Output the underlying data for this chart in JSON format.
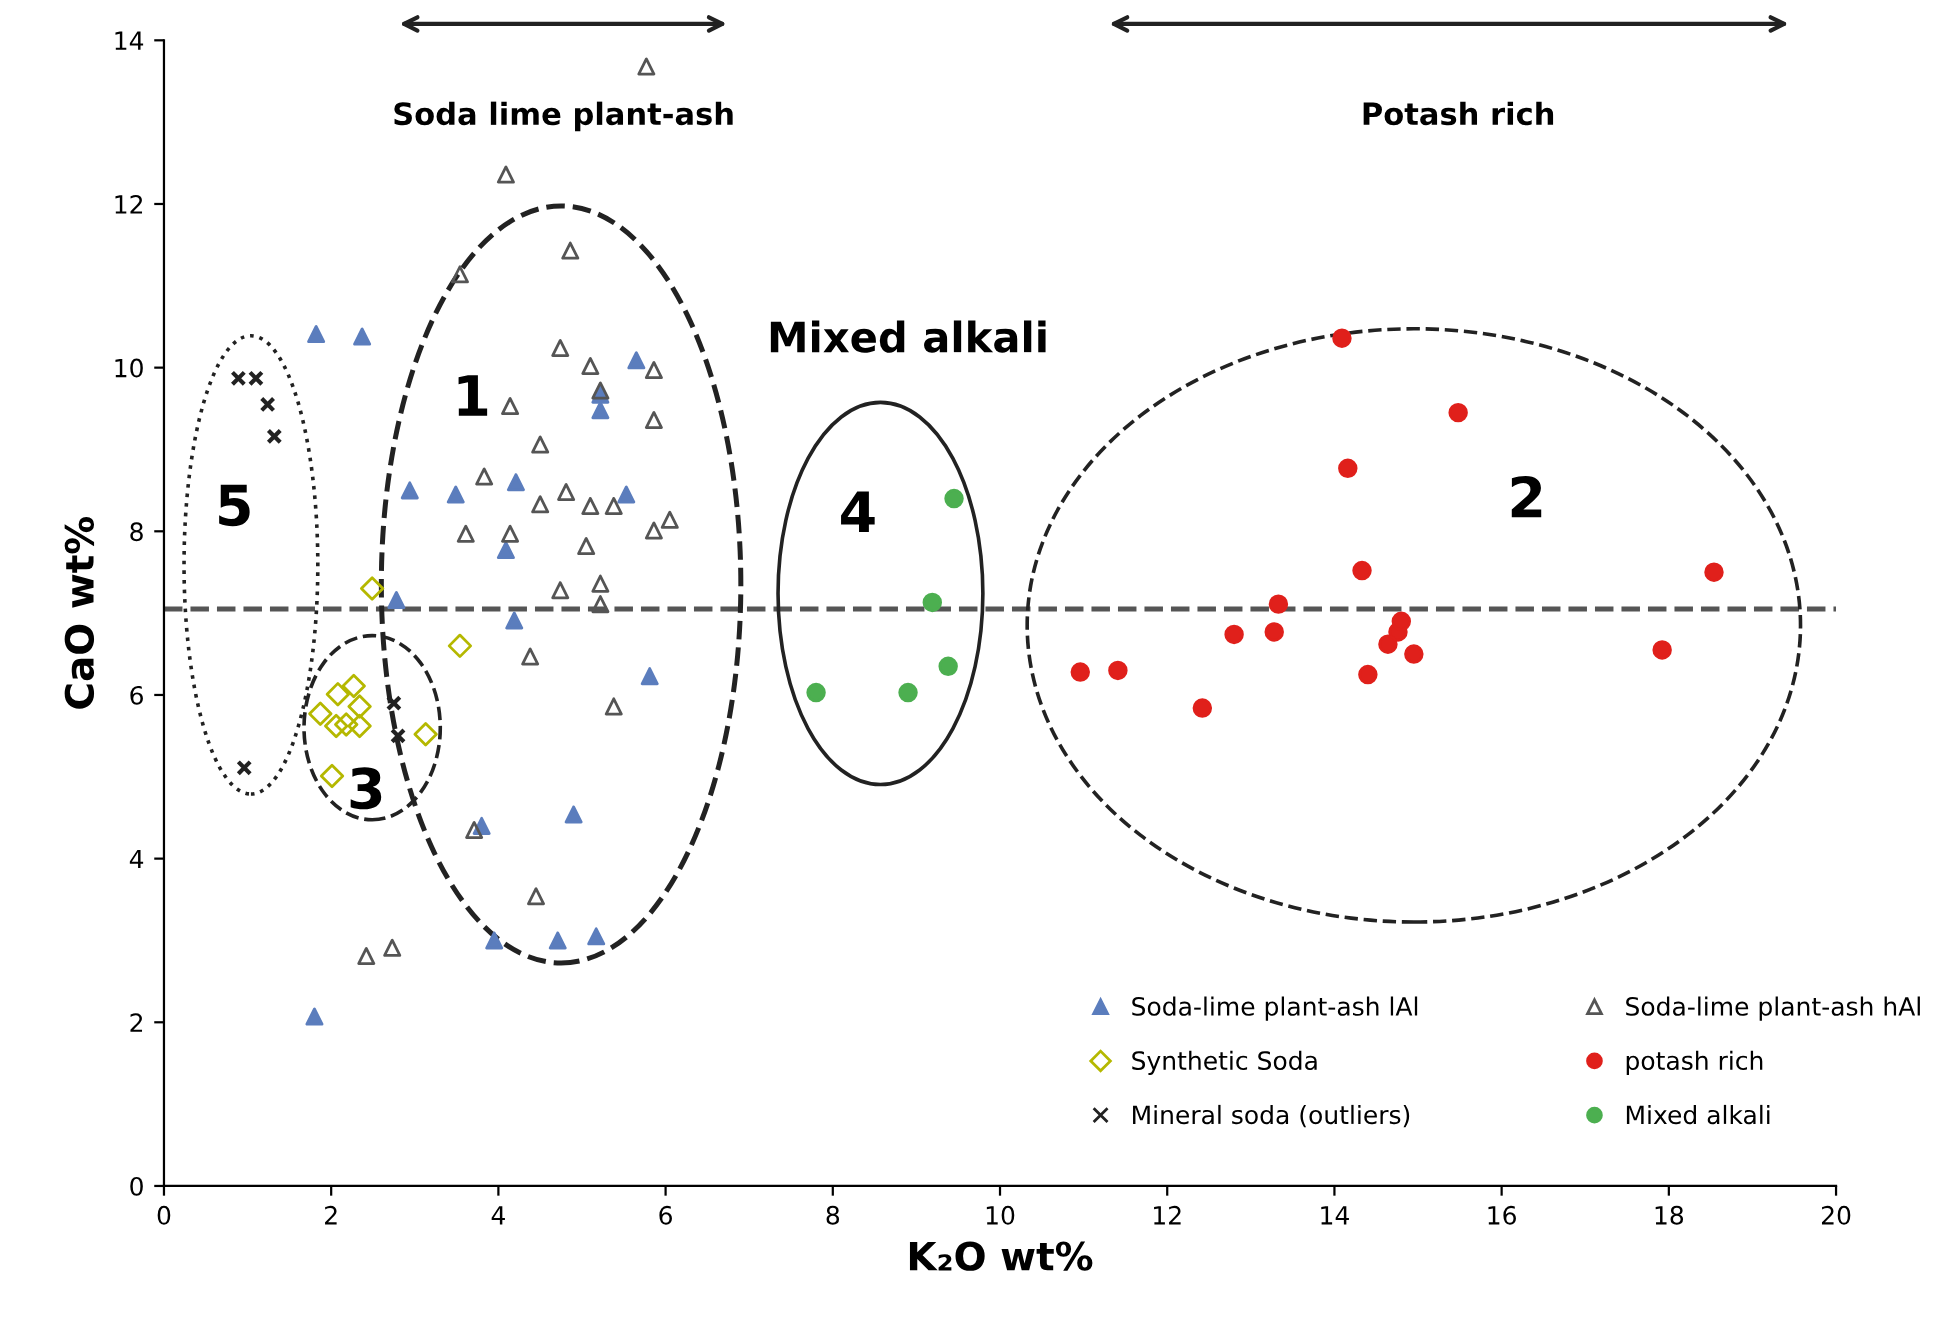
{
  "chart_data": {
    "type": "scatter",
    "xlabel": "K₂O wt%",
    "ylabel": "CaO wt%",
    "xlim": [
      0,
      20
    ],
    "xticks": [
      0,
      2,
      4,
      6,
      8,
      10,
      12,
      14,
      16,
      18,
      20
    ],
    "ylim": [
      0,
      14
    ],
    "yticks": [
      0,
      2,
      4,
      6,
      8,
      10,
      12,
      14
    ],
    "grid": false,
    "legend": "bottom right",
    "ref_lines": [
      {
        "axis": "y",
        "value": 7.05,
        "label": null,
        "color": "#555555",
        "line_style": "dashed"
      }
    ],
    "annotations": [
      "Soda lime plant-ash",
      "Potash rich",
      "Mixed alkali",
      "1",
      "2",
      "3",
      "4",
      "5"
    ],
    "series": [
      {
        "name": "Soda-lime plant-ash lAl",
        "color": "#5b7dbd",
        "marker": "triangle",
        "x": [
          1.82,
          2.37,
          2.94,
          3.49,
          4.21,
          4.09,
          4.19,
          2.78,
          5.81,
          4.9,
          3.8,
          3.95,
          4.71,
          5.17,
          5.53,
          5.22,
          5.22,
          5.65,
          1.8
        ],
        "values": [
          10.41,
          10.38,
          8.5,
          8.45,
          8.6,
          7.77,
          6.91,
          7.16,
          6.23,
          4.54,
          4.4,
          3.0,
          3.0,
          3.05,
          8.45,
          9.67,
          9.48,
          10.09,
          2.07
        ]
      },
      {
        "name": "Soda-lime plant-ash hAl",
        "color": "#555555",
        "marker": "triangle",
        "x": [
          5.77,
          4.09,
          4.86,
          3.54,
          4.74,
          5.1,
          5.86,
          4.14,
          5.86,
          5.22,
          4.5,
          3.83,
          4.5,
          4.81,
          5.1,
          5.38,
          3.61,
          4.14,
          5.05,
          5.86,
          6.05,
          4.74,
          5.22,
          5.22,
          4.38,
          5.38,
          4.45,
          3.71,
          2.42,
          2.73
        ],
        "values": [
          13.68,
          12.36,
          11.43,
          11.14,
          10.24,
          10.02,
          9.97,
          9.53,
          9.36,
          9.72,
          9.06,
          8.67,
          8.33,
          8.48,
          8.31,
          8.31,
          7.97,
          7.97,
          7.82,
          8.01,
          8.14,
          7.28,
          7.36,
          7.11,
          6.47,
          5.86,
          3.54,
          4.35,
          2.81,
          2.91
        ]
      },
      {
        "name": "Synthetic Soda",
        "color": "#b5b800",
        "marker": "diamond",
        "x": [
          2.49,
          3.54,
          2.27,
          2.08,
          2.34,
          2.18,
          2.34,
          2.06,
          3.13,
          2.01,
          1.87
        ],
        "values": [
          7.3,
          6.6,
          6.11,
          6.01,
          5.86,
          5.64,
          5.62,
          5.62,
          5.52,
          5.01,
          5.77
        ]
      },
      {
        "name": "potash rich",
        "color": "#e0201b",
        "marker": "circle",
        "x": [
          14.09,
          15.48,
          14.16,
          14.33,
          18.54,
          13.33,
          13.28,
          12.8,
          14.76,
          14.64,
          14.95,
          14.4,
          11.41,
          10.96,
          12.42,
          17.92,
          14.8
        ],
        "values": [
          10.36,
          9.45,
          8.77,
          7.52,
          7.5,
          7.11,
          6.77,
          6.74,
          6.77,
          6.62,
          6.5,
          6.25,
          6.3,
          6.28,
          5.84,
          6.55,
          6.9
        ]
      },
      {
        "name": "Mineral soda (outliers)",
        "color": "#222222",
        "marker": "cross",
        "x": [
          0.89,
          1.1,
          1.24,
          1.32,
          0.96,
          2.75,
          2.8
        ],
        "values": [
          9.87,
          9.87,
          9.55,
          9.16,
          5.11,
          5.9,
          5.5
        ]
      },
      {
        "name": "Mixed alkali",
        "color": "#4caf50",
        "marker": "circle",
        "x": [
          9.45,
          9.19,
          9.38,
          7.8,
          8.9
        ],
        "values": [
          8.4,
          7.13,
          6.35,
          6.03,
          6.03
        ]
      }
    ]
  }
}
